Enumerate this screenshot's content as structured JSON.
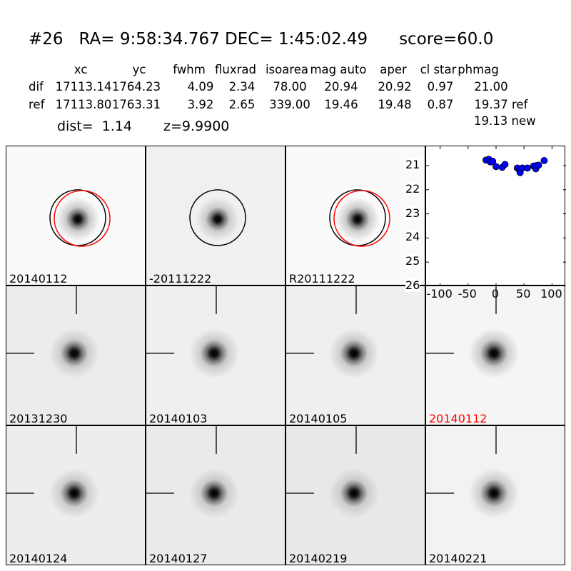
{
  "header": {
    "id": "#26",
    "ra": "RA= 9:58:34.767",
    "dec": "DEC= 1:45:02.49",
    "score": "score=60.0"
  },
  "table": {
    "columns": [
      "xc",
      "yc",
      "fwhm",
      "fluxrad",
      "isoarea",
      "mag auto",
      "aper",
      "cl star",
      "phmag"
    ],
    "rows": [
      {
        "label": "dif",
        "values": [
          "17113.14",
          "1764.23",
          "4.09",
          "2.34",
          "78.00",
          "20.94",
          "20.92",
          "0.97",
          "21.00"
        ],
        "suffix": ""
      },
      {
        "label": "ref",
        "values": [
          "17113.80",
          "1763.31",
          "3.92",
          "2.65",
          "339.00",
          "19.46",
          "19.48",
          "0.87",
          "19.37"
        ],
        "suffix": "ref"
      }
    ],
    "extra_phmag": "19.13 new",
    "dist": "dist=  1.14",
    "z": "z=9.9900"
  },
  "panels": [
    {
      "label": "20140112",
      "label_color": "#000000",
      "bg": "#fafafa",
      "circles": [
        "#000000",
        "#ff0000"
      ],
      "crosshair": false
    },
    {
      "label": "-20111222",
      "label_color": "#000000",
      "bg": "#f0f0f0",
      "circles": [
        "#000000"
      ],
      "crosshair": false
    },
    {
      "label": "R20111222",
      "label_color": "#000000",
      "bg": "#fafafa",
      "circles": [
        "#000000",
        "#ff0000"
      ],
      "crosshair": false
    },
    {
      "label": "20131230",
      "label_color": "#000000",
      "bg": "#ececec",
      "circles": [],
      "crosshair": true
    },
    {
      "label": "20140103",
      "label_color": "#000000",
      "bg": "#efefef",
      "circles": [],
      "crosshair": true
    },
    {
      "label": "20140105",
      "label_color": "#000000",
      "bg": "#efefef",
      "circles": [],
      "crosshair": true
    },
    {
      "label": "20140112",
      "label_color": "#ff0000",
      "bg": "#f5f5f5",
      "circles": [],
      "crosshair": true
    },
    {
      "label": "20140124",
      "label_color": "#000000",
      "bg": "#ededed",
      "circles": [],
      "crosshair": true
    },
    {
      "label": "20140127",
      "label_color": "#000000",
      "bg": "#eaeaea",
      "circles": [],
      "crosshair": true
    },
    {
      "label": "20140219",
      "label_color": "#000000",
      "bg": "#e8e8e8",
      "circles": [],
      "crosshair": true
    },
    {
      "label": "20140221",
      "label_color": "#000000",
      "bg": "#f2f2f2",
      "circles": [],
      "crosshair": true
    }
  ],
  "chart_data": {
    "type": "scatter",
    "x": [
      -18,
      -13,
      -10,
      -6,
      0,
      11,
      16,
      38,
      42,
      43,
      47,
      56,
      67,
      71,
      72,
      76,
      86
    ],
    "y": [
      20.77,
      20.74,
      20.85,
      20.82,
      21.04,
      21.07,
      20.95,
      21.1,
      21.2,
      21.29,
      21.1,
      21.1,
      21.02,
      21.13,
      21.0,
      20.98,
      20.79
    ],
    "xlim": [
      -125,
      125
    ],
    "ylim": [
      26,
      20.2
    ],
    "y_inverted": true,
    "xticks": [
      "-100",
      "-50",
      "0",
      "50",
      "100"
    ],
    "xtick_values": [
      -100,
      -50,
      0,
      50,
      100
    ],
    "yticks": [
      "21",
      "22",
      "23",
      "24",
      "25",
      "26"
    ],
    "ytick_values": [
      21,
      22,
      23,
      24,
      25,
      26
    ],
    "marker_color": "#0000ff",
    "grid": false
  }
}
